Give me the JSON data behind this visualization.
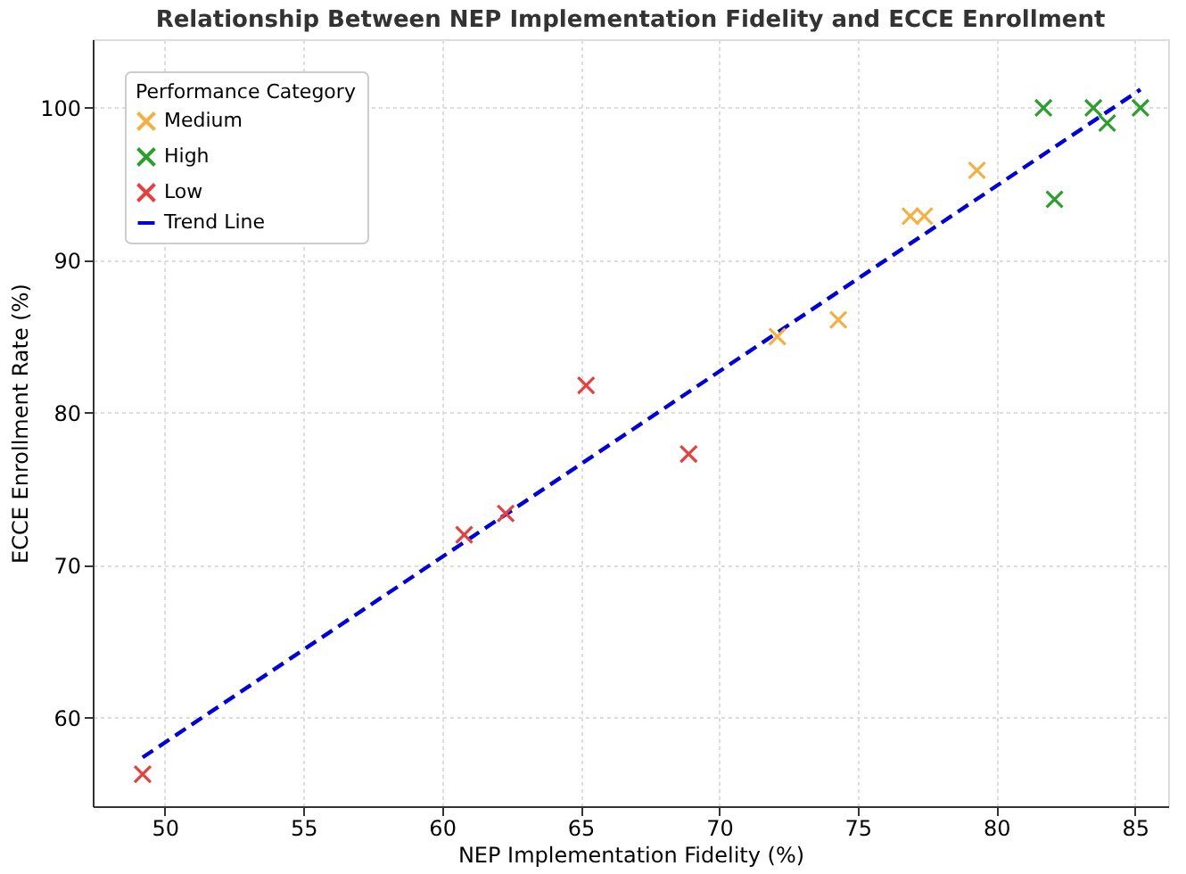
{
  "chart_data": {
    "type": "scatter",
    "title": "Relationship Between NEP Implementation Fidelity and ECCE Enrollment",
    "xlabel": "NEP Implementation Fidelity (%)",
    "ylabel": "ECCE Enrollment Rate (%)",
    "legend_title": "Performance Category",
    "series": [
      {
        "name": "Medium",
        "color": "#f5b041",
        "x": [
          72.1,
          74.3,
          76.9,
          77.4,
          79.3
        ],
        "values": [
          85.0,
          86.1,
          92.9,
          92.9,
          95.9
        ]
      },
      {
        "name": "High",
        "color": "#2ca02c",
        "x": [
          81.7,
          82.1,
          83.5,
          84.0,
          85.2
        ],
        "values": [
          100,
          94.0,
          100,
          99.0,
          100
        ]
      },
      {
        "name": "Low",
        "color": "#e83e3e",
        "x": [
          49.2,
          60.8,
          62.3,
          65.2,
          68.9
        ],
        "values": [
          56.3,
          72.0,
          73.4,
          81.8,
          77.3
        ]
      },
      {
        "name": "Trend Line",
        "type": "line",
        "marker": "none",
        "line_style": "dashed",
        "color": "#0000dd",
        "x": [
          49.2,
          85.2
        ],
        "values": [
          57.4,
          101.2
        ]
      }
    ],
    "marker": "cross",
    "xlim": [
      47.4,
      86.2
    ],
    "ylim": [
      54.2,
      104.5
    ],
    "xticks": [
      50,
      55,
      60,
      65,
      70,
      75,
      80,
      85
    ],
    "yticks": [
      60,
      70,
      80,
      90,
      100
    ],
    "grid": true,
    "legend": "top left"
  }
}
